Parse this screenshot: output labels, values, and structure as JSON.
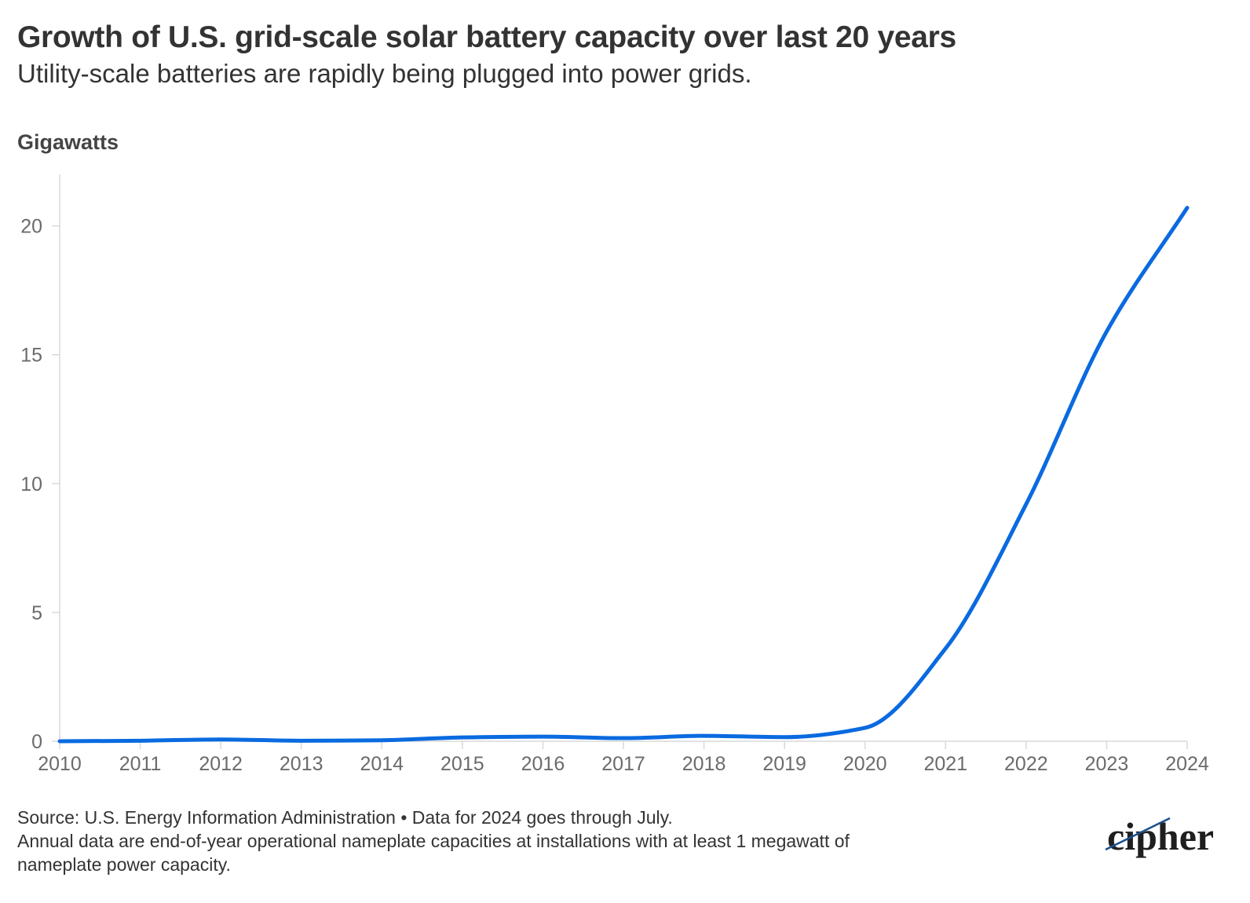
{
  "header": {
    "title": "Growth of U.S. grid-scale solar battery capacity over last 20 years",
    "subtitle": "Utility-scale batteries are rapidly being plugged into power grids.",
    "units_label": "Gigawatts"
  },
  "footer": {
    "source_line": "Source: U.S. Energy Information Administration • Data for 2024 goes through July.",
    "note_line_1": "Annual data are end-of-year operational nameplate capacities at installations with at least 1 megawatt of",
    "note_line_2": "nameplate power capacity."
  },
  "logo": {
    "text": "cipher"
  },
  "colors": {
    "line": "#0a6ae0",
    "axis": "#d9d9d9",
    "text": "#333333",
    "tick_text": "#6b6b6b"
  },
  "chart_data": {
    "type": "line",
    "title": "Growth of U.S. grid-scale solar battery capacity over last 20 years",
    "subtitle": "Utility-scale batteries are rapidly being plugged into power grids.",
    "ylabel": "Gigawatts",
    "xlabel": "",
    "x": [
      2010,
      2011,
      2012,
      2013,
      2014,
      2015,
      2016,
      2017,
      2018,
      2019,
      2020,
      2021,
      2022,
      2023,
      2024
    ],
    "xticks": [
      "2010",
      "2011",
      "2012",
      "2013",
      "2014",
      "2015",
      "2016",
      "2017",
      "2018",
      "2019",
      "2020",
      "2021",
      "2022",
      "2023",
      "2024"
    ],
    "series": [
      {
        "values": [
          0.0,
          0.02,
          0.07,
          0.02,
          0.04,
          0.15,
          0.18,
          0.12,
          0.21,
          0.16,
          0.52,
          3.6,
          9.2,
          15.9,
          20.7
        ]
      }
    ],
    "ylim": [
      0,
      22
    ],
    "yticks": [
      0,
      5,
      10,
      15,
      20
    ],
    "grid": false,
    "legend": "none"
  }
}
